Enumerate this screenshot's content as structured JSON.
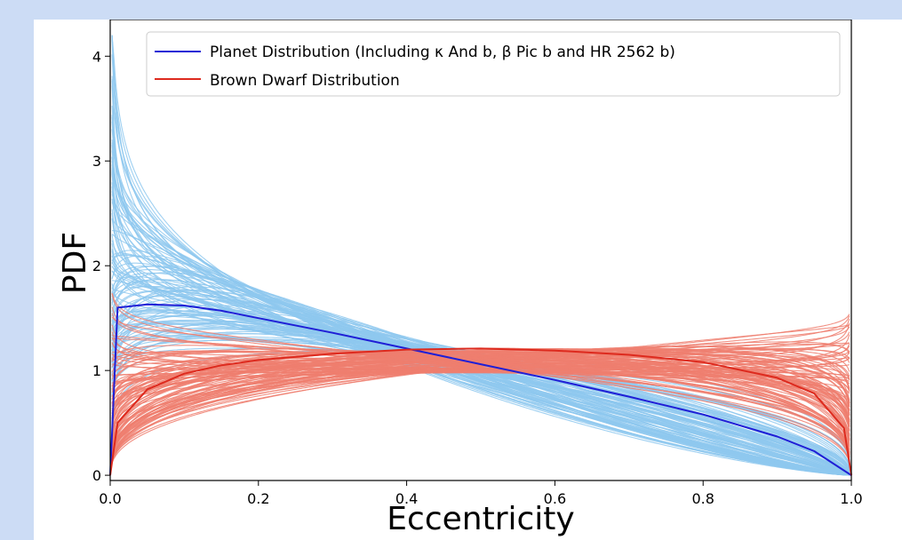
{
  "chart_data": {
    "type": "line",
    "title": "",
    "xlabel": "Eccentricity",
    "ylabel": "PDF",
    "xlim": [
      0.0,
      1.0
    ],
    "ylim": [
      -0.05,
      4.35
    ],
    "x_ticks": [
      "0.0",
      "0.2",
      "0.4",
      "0.6",
      "0.8",
      "1.0"
    ],
    "y_ticks": [
      "0",
      "1",
      "2",
      "3",
      "4"
    ],
    "grid": false,
    "legend_placement": "top",
    "series": [
      {
        "name": "Planet Distribution (Including κ And b, β Pic b and HR 2562 b)",
        "color": "#1f1fd6",
        "x": [
          0.0,
          0.01,
          0.05,
          0.1,
          0.15,
          0.2,
          0.3,
          0.4,
          0.5,
          0.6,
          0.7,
          0.8,
          0.9,
          0.95,
          1.0
        ],
        "y": [
          0.0,
          1.6,
          1.63,
          1.62,
          1.57,
          1.5,
          1.36,
          1.21,
          1.06,
          0.91,
          0.75,
          0.58,
          0.37,
          0.23,
          0.0
        ]
      },
      {
        "name": "Brown Dwarf Distribution",
        "color": "#dd2a1e",
        "x": [
          0.0,
          0.01,
          0.05,
          0.1,
          0.15,
          0.2,
          0.3,
          0.4,
          0.5,
          0.6,
          0.7,
          0.8,
          0.9,
          0.95,
          0.99,
          1.0
        ],
        "y": [
          0.0,
          0.5,
          0.82,
          0.97,
          1.05,
          1.1,
          1.16,
          1.2,
          1.21,
          1.19,
          1.15,
          1.08,
          0.93,
          0.78,
          0.45,
          0.0
        ]
      }
    ],
    "posterior_samples": {
      "planet_color": "#8ec8ef",
      "brown_dwarf_color": "#ee7e6e"
    }
  }
}
